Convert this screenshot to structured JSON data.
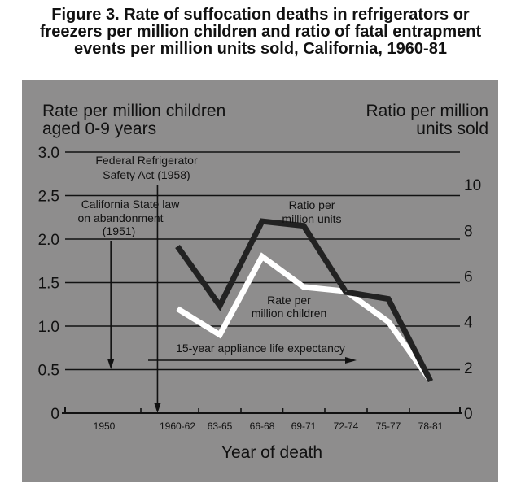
{
  "caption": {
    "line1": "Figure 3. Rate of suffocation deaths in refrigerators or",
    "line2": "freezers per million children and ratio of fatal entrapment",
    "line3": "events per million units sold, California, 1960-81"
  },
  "colors": {
    "panel": "#8e8d8d",
    "ink": "#111111",
    "rate_line": "#ffffff",
    "ratio_line": "#222222"
  },
  "chart_data": {
    "type": "line",
    "xlabel": "Year of death",
    "categories": [
      "1950",
      "1960-62",
      "63-65",
      "66-68",
      "69-71",
      "72-74",
      "75-77",
      "78-81"
    ],
    "left_axis": {
      "label_line1": "Rate per million children",
      "label_line2": "aged 0-9 years",
      "ticks": [
        0,
        0.5,
        1.0,
        1.5,
        2.0,
        2.5,
        3.0
      ],
      "tick_labels": [
        "0",
        "0.5",
        "1.0",
        "1.5",
        "2.0",
        "2.5",
        "3.0"
      ],
      "ylim": [
        0,
        3.0
      ]
    },
    "right_axis": {
      "label_line1": "Ratio per million",
      "label_line2": "units sold",
      "ticks": [
        0,
        2,
        4,
        6,
        8,
        10
      ],
      "tick_labels": [
        "0",
        "2",
        "4",
        "6",
        "8",
        "10"
      ],
      "ylim": [
        0,
        11.43
      ]
    },
    "series": [
      {
        "name": "Rate per million children",
        "axis": "left",
        "x": [
          "1960-62",
          "63-65",
          "66-68",
          "69-71",
          "72-74",
          "75-77",
          "78-81"
        ],
        "values": [
          1.2,
          0.9,
          1.8,
          1.45,
          1.4,
          1.05,
          0.37
        ]
      },
      {
        "name": "Ratio per million units",
        "axis": "right",
        "x": [
          "1960-62",
          "63-65",
          "66-68",
          "69-71",
          "72-74",
          "75-77",
          "78-81"
        ],
        "values": [
          7.3,
          4.7,
          8.4,
          8.2,
          5.3,
          5.0,
          1.4
        ]
      }
    ],
    "series_labels": {
      "ratio_line1": "Ratio per",
      "ratio_line2": "million units",
      "rate_line1": "Rate per",
      "rate_line2": "million children"
    },
    "annotations": {
      "federal_line1": "Federal Refrigerator",
      "federal_line2": "Safety Act (1958)",
      "federal_year": 1958,
      "state_line1": "California State law",
      "state_line2": "on abandonment",
      "state_line3": "(1951)",
      "state_year": 1951,
      "life_expectancy": "15-year appliance life expectancy"
    }
  }
}
